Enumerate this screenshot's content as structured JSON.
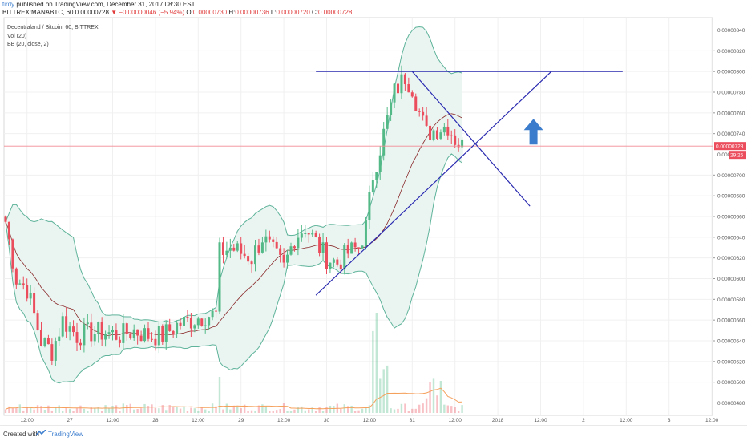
{
  "header": {
    "user": "tirdy",
    "published": " published on TradingView.com, December 31, 2017 08:30 EST",
    "symbol_line": "BITTREX:MANABTC, 60  0.00000728",
    "change_arrow": "▼",
    "change": " −0.00000046 (−5.94%)",
    "o_label": " O:",
    "o_value": "0.00000730",
    "h_label": " H:",
    "h_value": "0.00000736",
    "l_label": " L:",
    "l_value": "0.00000720",
    "c_label": " C:",
    "c_value": "0.00000728"
  },
  "legend": {
    "title": "Decentraland / Bitcoin, 60, BITTREX",
    "vol": "Vol (20)",
    "bb": "BB (20, close, 2)"
  },
  "footer": {
    "created": "Created with",
    "brand": "TradingView"
  },
  "colors": {
    "up": "#53b987",
    "down": "#eb4d5c",
    "bb_band": "#5fb39a",
    "bb_fill": "#eaf5f2",
    "bb_basis": "#8a2b2b",
    "trendline": "#2a2ab0",
    "arrow": "#3b7ccc",
    "volume_ma": "#f5a05b",
    "price_line": "#f28a92",
    "price_tag": "#eb4d5c"
  },
  "icons": {
    "up_arrow": "up-arrow-icon",
    "logo": "tradingview-logo-icon"
  },
  "chart_data": {
    "type": "candlestick",
    "title": "Decentraland / Bitcoin, 60, BITTREX",
    "ylim": [
      4.68e-06,
      8.52e-06
    ],
    "price_ticks": [
      {
        "v": 8.4e-06,
        "label": "0.00000840"
      },
      {
        "v": 8.2e-06,
        "label": "0.00000820"
      },
      {
        "v": 8e-06,
        "label": "0.00000800"
      },
      {
        "v": 7.8e-06,
        "label": "0.00000780"
      },
      {
        "v": 7.6e-06,
        "label": "0.00000760"
      },
      {
        "v": 7.4e-06,
        "label": "0.00000740"
      },
      {
        "v": 7e-06,
        "label": "0.00000700"
      },
      {
        "v": 6.8e-06,
        "label": "0.00000680"
      },
      {
        "v": 6.6e-06,
        "label": "0.00000660"
      },
      {
        "v": 6.4e-06,
        "label": "0.00000640"
      },
      {
        "v": 6.2e-06,
        "label": "0.00000620"
      },
      {
        "v": 6e-06,
        "label": "0.00000600"
      },
      {
        "v": 5.8e-06,
        "label": "0.00000580"
      },
      {
        "v": 5.6e-06,
        "label": "0.00000560"
      },
      {
        "v": 5.4e-06,
        "label": "0.00000540"
      },
      {
        "v": 5.2e-06,
        "label": "0.00000520"
      },
      {
        "v": 5e-06,
        "label": "0.00000500"
      },
      {
        "v": 4.8e-06,
        "label": "0.00000480"
      }
    ],
    "partial_tick": {
      "v": 7.2e-06,
      "label": "0.000"
    },
    "x_ticks": [
      {
        "bar": 6,
        "label": "12:00"
      },
      {
        "bar": 18,
        "label": "27"
      },
      {
        "bar": 30,
        "label": "12:00"
      },
      {
        "bar": 42,
        "label": "28"
      },
      {
        "bar": 54,
        "label": "12:00"
      },
      {
        "bar": 66,
        "label": "29"
      },
      {
        "bar": 78,
        "label": "12:00"
      },
      {
        "bar": 90,
        "label": "30"
      },
      {
        "bar": 102,
        "label": "12:00"
      },
      {
        "bar": 114,
        "label": "31"
      },
      {
        "bar": 126,
        "label": "12:00"
      },
      {
        "bar": 138,
        "label": "2018"
      },
      {
        "bar": 150,
        "label": "12:00"
      },
      {
        "bar": 162,
        "label": "2"
      },
      {
        "bar": 174,
        "label": "12:00"
      },
      {
        "bar": 186,
        "label": "3"
      },
      {
        "bar": 198,
        "label": "12:00"
      }
    ],
    "last_price": {
      "value": 7.28e-06,
      "label": "0.00000728",
      "countdown": "29:25"
    },
    "series": [
      {
        "name": "MANABTC",
        "closes_anchors": [
          [
            0,
            6.55e-06
          ],
          [
            3,
            6e-06
          ],
          [
            6,
            5.9e-06
          ],
          [
            10,
            5.4e-06
          ],
          [
            13,
            5.3e-06
          ],
          [
            16,
            5.6e-06
          ],
          [
            20,
            5.45e-06
          ],
          [
            24,
            5.48e-06
          ],
          [
            28,
            5.48e-06
          ],
          [
            32,
            5.45e-06
          ],
          [
            36,
            5.5e-06
          ],
          [
            40,
            5.45e-06
          ],
          [
            44,
            5.45e-06
          ],
          [
            48,
            5.55e-06
          ],
          [
            52,
            5.6e-06
          ],
          [
            56,
            5.65e-06
          ],
          [
            59,
            5.65e-06
          ],
          [
            60,
            6.25e-06
          ],
          [
            63,
            6.3e-06
          ],
          [
            66,
            6.25e-06
          ],
          [
            69,
            6.2e-06
          ],
          [
            72,
            6.4e-06
          ],
          [
            75,
            6.25e-06
          ],
          [
            78,
            6.1e-06
          ],
          [
            81,
            6.4e-06
          ],
          [
            84,
            6.5e-06
          ],
          [
            87,
            6.35e-06
          ],
          [
            90,
            6.2e-06
          ],
          [
            93,
            6.15e-06
          ],
          [
            96,
            6.25e-06
          ],
          [
            99,
            6.3e-06
          ],
          [
            101,
            6.5e-06
          ],
          [
            103,
            7e-06
          ],
          [
            106,
            7.4e-06
          ],
          [
            109,
            7.8e-06
          ],
          [
            112,
            7.95e-06
          ],
          [
            114,
            7.85e-06
          ],
          [
            116,
            7.6e-06
          ],
          [
            118,
            7.4e-06
          ],
          [
            121,
            7.45e-06
          ],
          [
            124,
            7.48e-06
          ],
          [
            126,
            7.35e-06
          ],
          [
            128,
            7.28e-06
          ]
        ]
      },
      {
        "name": "Vol",
        "pattern": "low with spikes near bars 60, 103-107"
      }
    ],
    "annotations": [
      {
        "type": "horizontal_segment",
        "from_bar": 87,
        "to_bar": 173,
        "price": 8e-06
      },
      {
        "type": "trendline",
        "from": [
          87,
          5.84e-06
        ],
        "to": [
          153,
          8e-06
        ]
      },
      {
        "type": "trendline",
        "from": [
          114,
          8e-06
        ],
        "to": [
          147,
          6.7e-06
        ]
      },
      {
        "type": "arrow_up",
        "bar": 148,
        "price": 7.45e-06
      }
    ]
  }
}
